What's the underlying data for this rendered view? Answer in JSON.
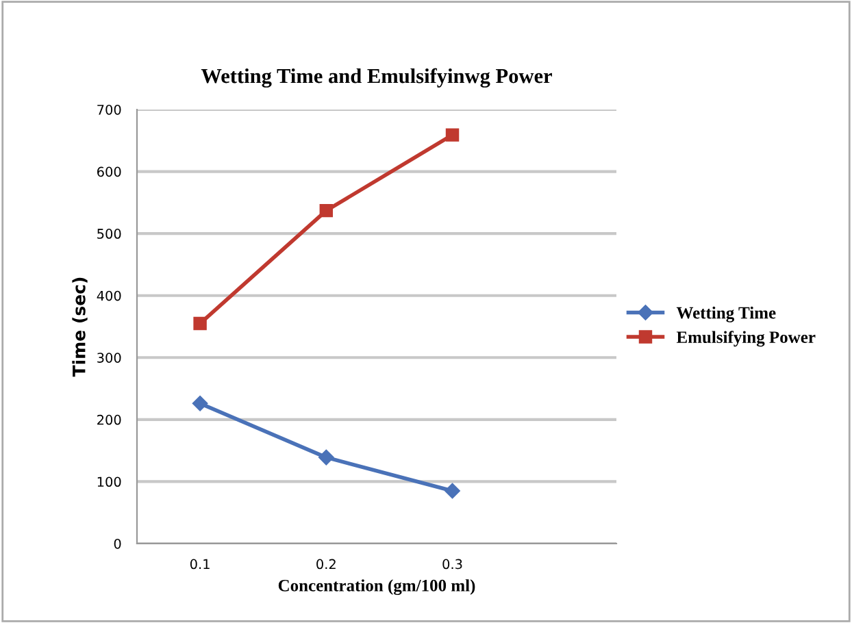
{
  "chart_data": {
    "type": "line",
    "title": "Wetting Time and Emulsifyinwg Power",
    "xlabel": "Concentration (gm/100 ml)",
    "ylabel": "Time (sec)",
    "x": [
      0.1,
      0.2,
      0.3
    ],
    "series": [
      {
        "name": "Wetting Time",
        "color": "#4a72b8",
        "values": [
          226,
          139,
          85
        ],
        "marker": "diamond"
      },
      {
        "name": "Emulsifying Power",
        "color": "#c0392f",
        "values": [
          355,
          537,
          659
        ],
        "marker": "square"
      }
    ],
    "xlim": [
      0.05,
      0.43
    ],
    "xticks": [
      0.1,
      0.2,
      0.3
    ],
    "ylim": [
      0,
      700
    ],
    "yticks": [
      0,
      100,
      200,
      300,
      400,
      500,
      600,
      700
    ],
    "grid": "y",
    "legend": "right",
    "line_style": "solid"
  }
}
